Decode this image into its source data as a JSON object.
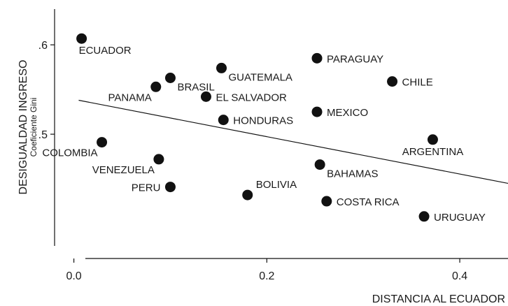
{
  "chart_data": {
    "type": "scatter",
    "xlabel": "DISTANCIA AL ECUADOR",
    "ylabel": "DESIGUALDAD INGRESO",
    "ylabel_sub": "Coeficiente Gini",
    "xlim": [
      -0.02,
      0.45
    ],
    "ylim": [
      0.375,
      0.64
    ],
    "x_ticks": [
      {
        "value": 0.0,
        "label": "0.0"
      },
      {
        "value": 0.2,
        "label": "0.2"
      },
      {
        "value": 0.4,
        "label": "0.4"
      }
    ],
    "y_ticks": [
      {
        "value": 0.6,
        "label": ".6"
      },
      {
        "value": 0.5,
        "label": ".5"
      }
    ],
    "trendline": {
      "x": [
        0.005,
        0.45
      ],
      "y": [
        0.538,
        0.445
      ]
    },
    "marker_color": "#111111",
    "points": [
      {
        "name": "ECUADOR",
        "x": 0.008,
        "y": 0.607,
        "label_pos": "below"
      },
      {
        "name": "PANAMA",
        "x": 0.085,
        "y": 0.553,
        "label_pos": "below-left"
      },
      {
        "name": "BRASIL",
        "x": 0.1,
        "y": 0.563,
        "label_pos": "below-right"
      },
      {
        "name": "GUATEMALA",
        "x": 0.153,
        "y": 0.574,
        "label_pos": "below-right"
      },
      {
        "name": "EL SALVADOR",
        "x": 0.137,
        "y": 0.542,
        "label_pos": "right"
      },
      {
        "name": "HONDURAS",
        "x": 0.155,
        "y": 0.516,
        "label_pos": "right"
      },
      {
        "name": "PARAGUAY",
        "x": 0.252,
        "y": 0.585,
        "label_pos": "right"
      },
      {
        "name": "CHILE",
        "x": 0.33,
        "y": 0.559,
        "label_pos": "right"
      },
      {
        "name": "MEXICO",
        "x": 0.252,
        "y": 0.525,
        "label_pos": "right"
      },
      {
        "name": "ARGENTINA",
        "x": 0.372,
        "y": 0.494,
        "label_pos": "below"
      },
      {
        "name": "COLOMBIA",
        "x": 0.029,
        "y": 0.491,
        "label_pos": "below-left"
      },
      {
        "name": "VENEZUELA",
        "x": 0.088,
        "y": 0.472,
        "label_pos": "below-left"
      },
      {
        "name": "PERU",
        "x": 0.1,
        "y": 0.441,
        "label_pos": "left"
      },
      {
        "name": "BAHAMAS",
        "x": 0.255,
        "y": 0.466,
        "label_pos": "below-right"
      },
      {
        "name": "BOLIVIA",
        "x": 0.18,
        "y": 0.432,
        "label_pos": "above-right"
      },
      {
        "name": "COSTA RICA",
        "x": 0.262,
        "y": 0.425,
        "label_pos": "right"
      },
      {
        "name": "URUGUAY",
        "x": 0.363,
        "y": 0.408,
        "label_pos": "right"
      }
    ]
  }
}
